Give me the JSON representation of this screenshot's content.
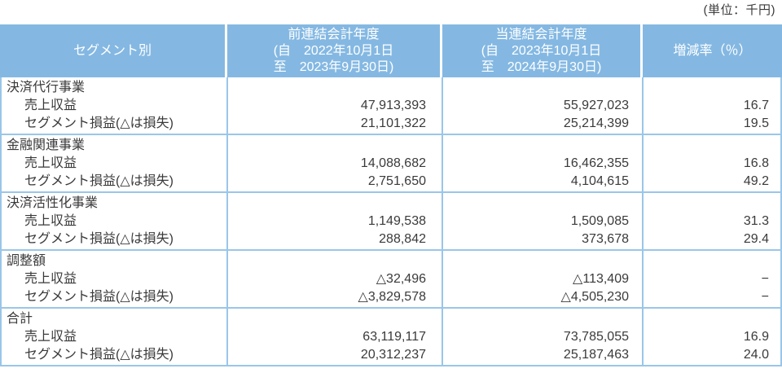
{
  "unit_label": "(単位：千円)",
  "colors": {
    "header_bg": "#84b8e2",
    "grid_line": "#9ac6e9",
    "header_text": "#ffffff",
    "body_text": "#3a3a3a"
  },
  "table": {
    "header": {
      "segment": "セグメント別",
      "prev_year": {
        "title": "前連結会計年度",
        "line2": "(自　2022年10月1日",
        "line3": "至　2023年9月30日)"
      },
      "curr_year": {
        "title": "当連結会計年度",
        "line2": "(自　2023年10月1日",
        "line3": "至　2024年9月30日)"
      },
      "change": "増減率（％）"
    },
    "row_label_revenue": "売上収益",
    "row_label_profit": "セグメント損益(△は損失)",
    "groups": [
      {
        "name": "決済代行事業",
        "revenue": {
          "prev": "47,913,393",
          "curr": "55,927,023",
          "change": "16.7"
        },
        "profit": {
          "prev": "21,101,322",
          "curr": "25,214,399",
          "change": "19.5"
        }
      },
      {
        "name": "金融関連事業",
        "revenue": {
          "prev": "14,088,682",
          "curr": "16,462,355",
          "change": "16.8"
        },
        "profit": {
          "prev": "2,751,650",
          "curr": "4,104,615",
          "change": "49.2"
        }
      },
      {
        "name": "決済活性化事業",
        "revenue": {
          "prev": "1,149,538",
          "curr": "1,509,085",
          "change": "31.3"
        },
        "profit": {
          "prev": "288,842",
          "curr": "373,678",
          "change": "29.4"
        }
      },
      {
        "name": "調整額",
        "revenue": {
          "prev": "△32,496",
          "curr": "△113,409",
          "change": "−"
        },
        "profit": {
          "prev": "△3,829,578",
          "curr": "△4,505,230",
          "change": "−"
        }
      },
      {
        "name": "合計",
        "revenue": {
          "prev": "63,119,117",
          "curr": "73,785,055",
          "change": "16.9"
        },
        "profit": {
          "prev": "20,312,237",
          "curr": "25,187,463",
          "change": "24.0"
        }
      }
    ]
  }
}
